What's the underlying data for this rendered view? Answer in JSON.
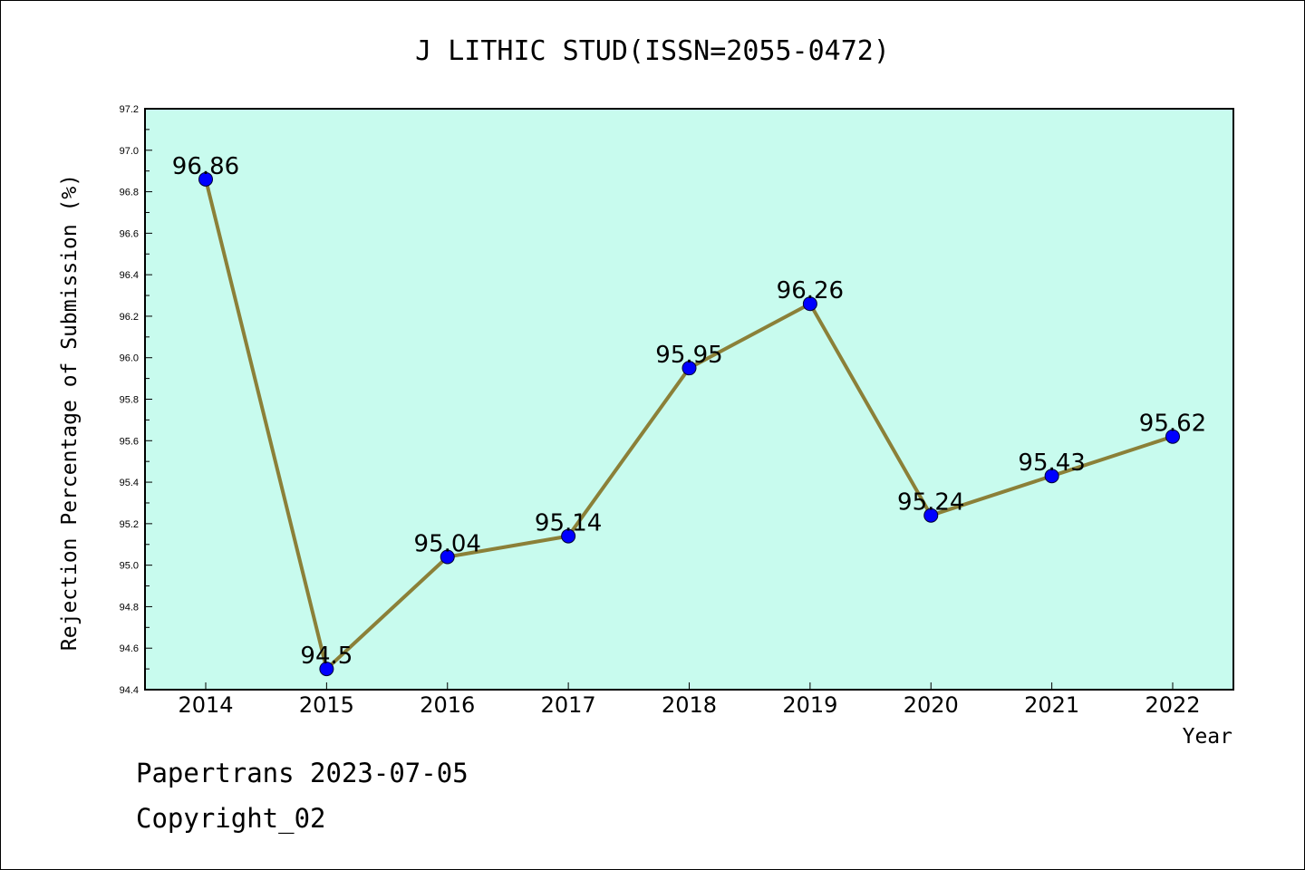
{
  "chart_data": {
    "type": "line",
    "title": "J LITHIC STUD(ISSN=2055-0472)",
    "xlabel": "Year",
    "ylabel": "Rejection Percentage of Submission (%)",
    "categories": [
      "2014",
      "2015",
      "2016",
      "2017",
      "2018",
      "2019",
      "2020",
      "2021",
      "2022"
    ],
    "values": [
      96.86,
      94.5,
      95.04,
      95.14,
      95.95,
      96.26,
      95.24,
      95.43,
      95.62
    ],
    "data_labels": [
      "96.86",
      "94.5",
      "95.04",
      "95.14",
      "95.95",
      "96.26",
      "95.24",
      "95.43",
      "95.62"
    ],
    "ylim": [
      94.4,
      97.2
    ],
    "yticks": [
      "94.4",
      "94.6",
      "94.8",
      "95.0",
      "95.2",
      "95.4",
      "95.6",
      "95.8",
      "96.0",
      "96.2",
      "96.4",
      "96.6",
      "96.8",
      "97.0",
      "97.2"
    ],
    "grid": false,
    "colors": {
      "plot_background": "#c8fbee",
      "line": "#8b8038",
      "marker": "#0000ff"
    }
  },
  "footer": {
    "date": "Papertrans 2023-07-05",
    "copyright": "Copyright_02"
  }
}
